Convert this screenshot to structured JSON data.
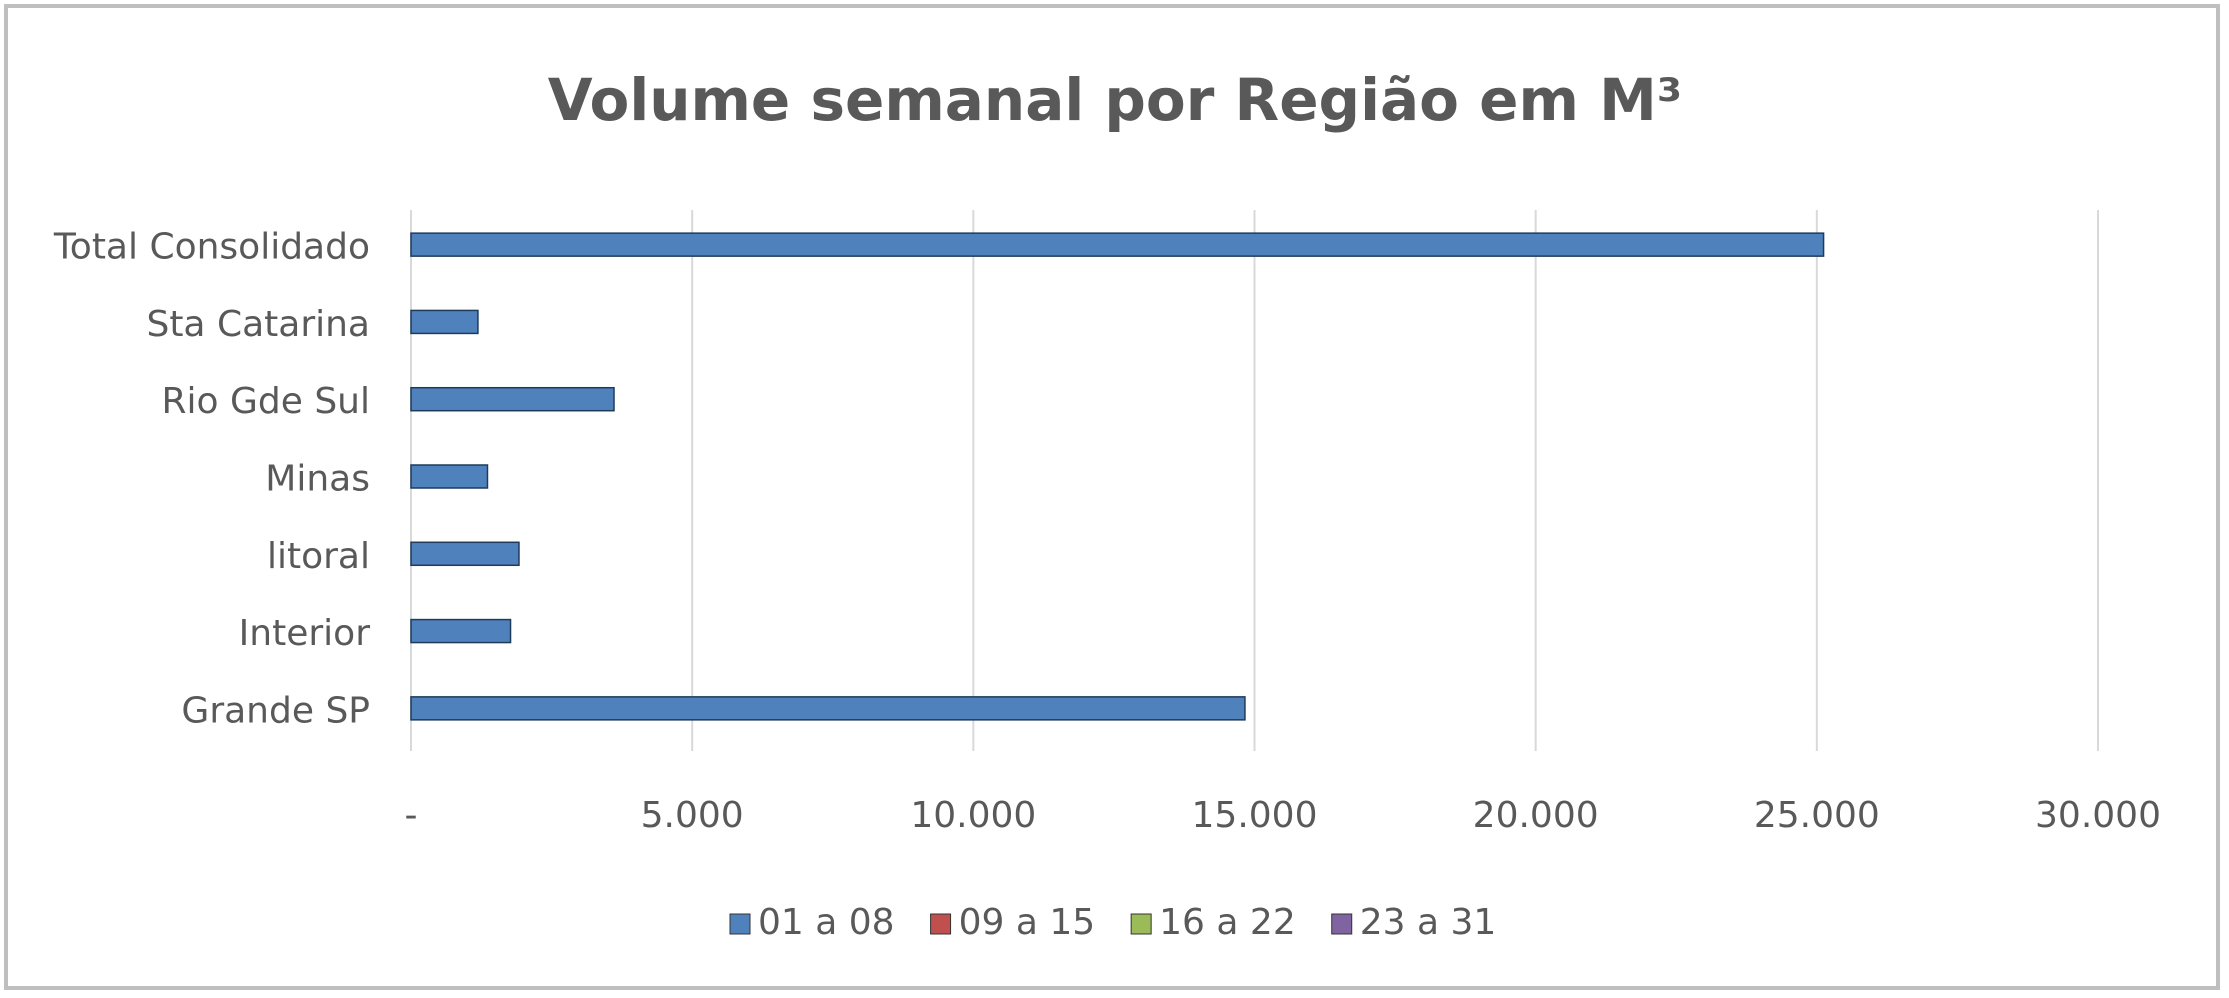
{
  "chart_data": {
    "type": "bar",
    "orientation": "horizontal",
    "title": "Volume semanal por Região em M³",
    "categories": [
      "Grande SP",
      "Interior",
      "litoral",
      "Minas",
      "Rio Gde Sul",
      "Sta Catarina",
      "Total Consolidado"
    ],
    "series": [
      {
        "name": "01 a 08",
        "color": "#4f81bd",
        "values": [
          14830,
          1770,
          1920,
          1360,
          3610,
          1190,
          25120
        ]
      },
      {
        "name": "09 a 15",
        "color": "#c0504d",
        "values": [
          null,
          null,
          null,
          null,
          null,
          null,
          null
        ]
      },
      {
        "name": "16 a 22",
        "color": "#9bbb59",
        "values": [
          null,
          null,
          null,
          null,
          null,
          null,
          null
        ]
      },
      {
        "name": "23 a 31",
        "color": "#8064a2",
        "values": [
          null,
          null,
          null,
          null,
          null,
          null,
          null
        ]
      }
    ],
    "xlim": [
      0,
      30000
    ],
    "xticks": [
      {
        "value": 0,
        "label": "-"
      },
      {
        "value": 5000,
        "label": "5.000"
      },
      {
        "value": 10000,
        "label": "10.000"
      },
      {
        "value": 15000,
        "label": "15.000"
      },
      {
        "value": 20000,
        "label": "20.000"
      },
      {
        "value": 25000,
        "label": "25.000"
      },
      {
        "value": 30000,
        "label": "30.000"
      }
    ],
    "grid": true,
    "legend": "bottom"
  }
}
